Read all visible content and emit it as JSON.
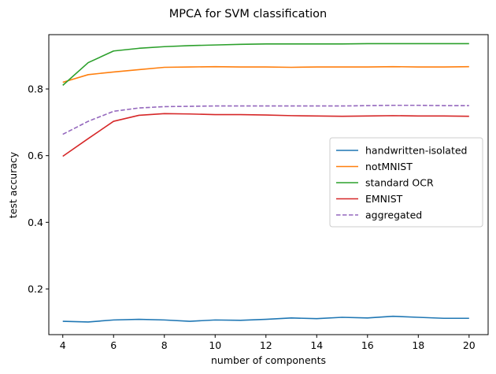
{
  "chart_data": {
    "type": "line",
    "title": "MPCA for SVM classification",
    "xlabel": "number of components",
    "ylabel": "test accuracy",
    "xlim": [
      3.45,
      20.75
    ],
    "ylim": [
      0.063,
      0.963
    ],
    "xticks": [
      4,
      6,
      8,
      10,
      12,
      14,
      16,
      18,
      20
    ],
    "yticks": [
      0.2,
      0.4,
      0.6,
      0.8
    ],
    "ytick_labels": [
      "0.2",
      "0.4",
      "0.6",
      "0.8"
    ],
    "grid": false,
    "legend_position": "center-right",
    "x": [
      4,
      5,
      6,
      7,
      8,
      9,
      10,
      11,
      12,
      13,
      14,
      15,
      16,
      17,
      18,
      19,
      20
    ],
    "series": [
      {
        "name": "handwritten-isolated",
        "color": "#1f77b4",
        "dash": "solid",
        "values": [
          0.103,
          0.101,
          0.107,
          0.109,
          0.107,
          0.103,
          0.107,
          0.106,
          0.109,
          0.113,
          0.111,
          0.115,
          0.113,
          0.118,
          0.115,
          0.112,
          0.112
        ]
      },
      {
        "name": "notMNIST",
        "color": "#ff7f0e",
        "dash": "solid",
        "values": [
          0.82,
          0.843,
          0.851,
          0.858,
          0.865,
          0.866,
          0.867,
          0.866,
          0.866,
          0.865,
          0.866,
          0.866,
          0.866,
          0.867,
          0.866,
          0.866,
          0.867
        ]
      },
      {
        "name": "standard OCR",
        "color": "#2ca02c",
        "dash": "solid",
        "values": [
          0.811,
          0.879,
          0.914,
          0.922,
          0.927,
          0.93,
          0.932,
          0.934,
          0.935,
          0.935,
          0.935,
          0.935,
          0.936,
          0.936,
          0.936,
          0.936,
          0.936
        ]
      },
      {
        "name": "EMNIST",
        "color": "#d62728",
        "dash": "solid",
        "values": [
          0.598,
          0.651,
          0.703,
          0.721,
          0.726,
          0.725,
          0.723,
          0.723,
          0.722,
          0.72,
          0.719,
          0.718,
          0.719,
          0.72,
          0.719,
          0.719,
          0.718
        ]
      },
      {
        "name": "aggregated",
        "color": "#9467bd",
        "dash": "dashed",
        "values": [
          0.664,
          0.703,
          0.733,
          0.743,
          0.747,
          0.748,
          0.749,
          0.749,
          0.749,
          0.749,
          0.749,
          0.749,
          0.75,
          0.751,
          0.751,
          0.75,
          0.75
        ]
      }
    ]
  }
}
